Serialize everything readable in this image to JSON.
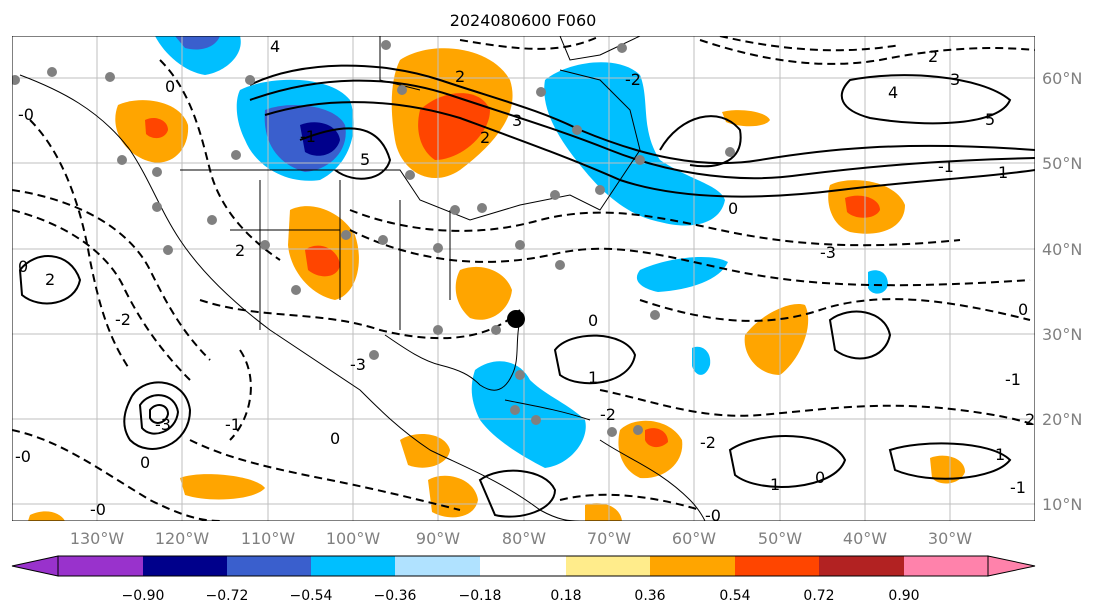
{
  "title": "2024080600 F060",
  "lon_labels": [
    "130°W",
    "120°W",
    "110°W",
    "100°W",
    "90°W",
    "80°W",
    "70°W",
    "60°W",
    "50°W",
    "40°W",
    "30°W"
  ],
  "lat_labels": [
    "60°N",
    "50°N",
    "40°N",
    "30°N",
    "20°N",
    "10°N"
  ],
  "colorbar": {
    "ticks": [
      "−0.90",
      "−0.72",
      "−0.54",
      "−0.36",
      "−0.18",
      "0.18",
      "0.36",
      "0.54",
      "0.72",
      "0.90"
    ],
    "colors": [
      "#9932cc",
      "#00008b",
      "#3a5fcd",
      "#00bfff",
      "#b0e2ff",
      "#ffffff",
      "#ffec8b",
      "#ffa500",
      "#ff4500",
      "#b22222",
      "#ff82ab"
    ]
  },
  "contour_labels": [
    "4",
    "0",
    "2",
    "3",
    "5",
    "-0",
    "-1",
    "1",
    "3",
    "2",
    "4",
    "5",
    "-2",
    "0",
    "2",
    "-3",
    "0",
    "2",
    "-1",
    "2",
    "-2",
    "-3",
    "0",
    "1",
    "-1",
    "2",
    "-0",
    "0",
    "0",
    "1",
    "-3",
    "0",
    "-0",
    "-2",
    "-2",
    "-1",
    "1",
    "-1",
    "0",
    "-0"
  ],
  "colors": {
    "land_border": "#000000",
    "grid": "#bfbfbf",
    "station": "#808080",
    "marker": "#000000"
  }
}
